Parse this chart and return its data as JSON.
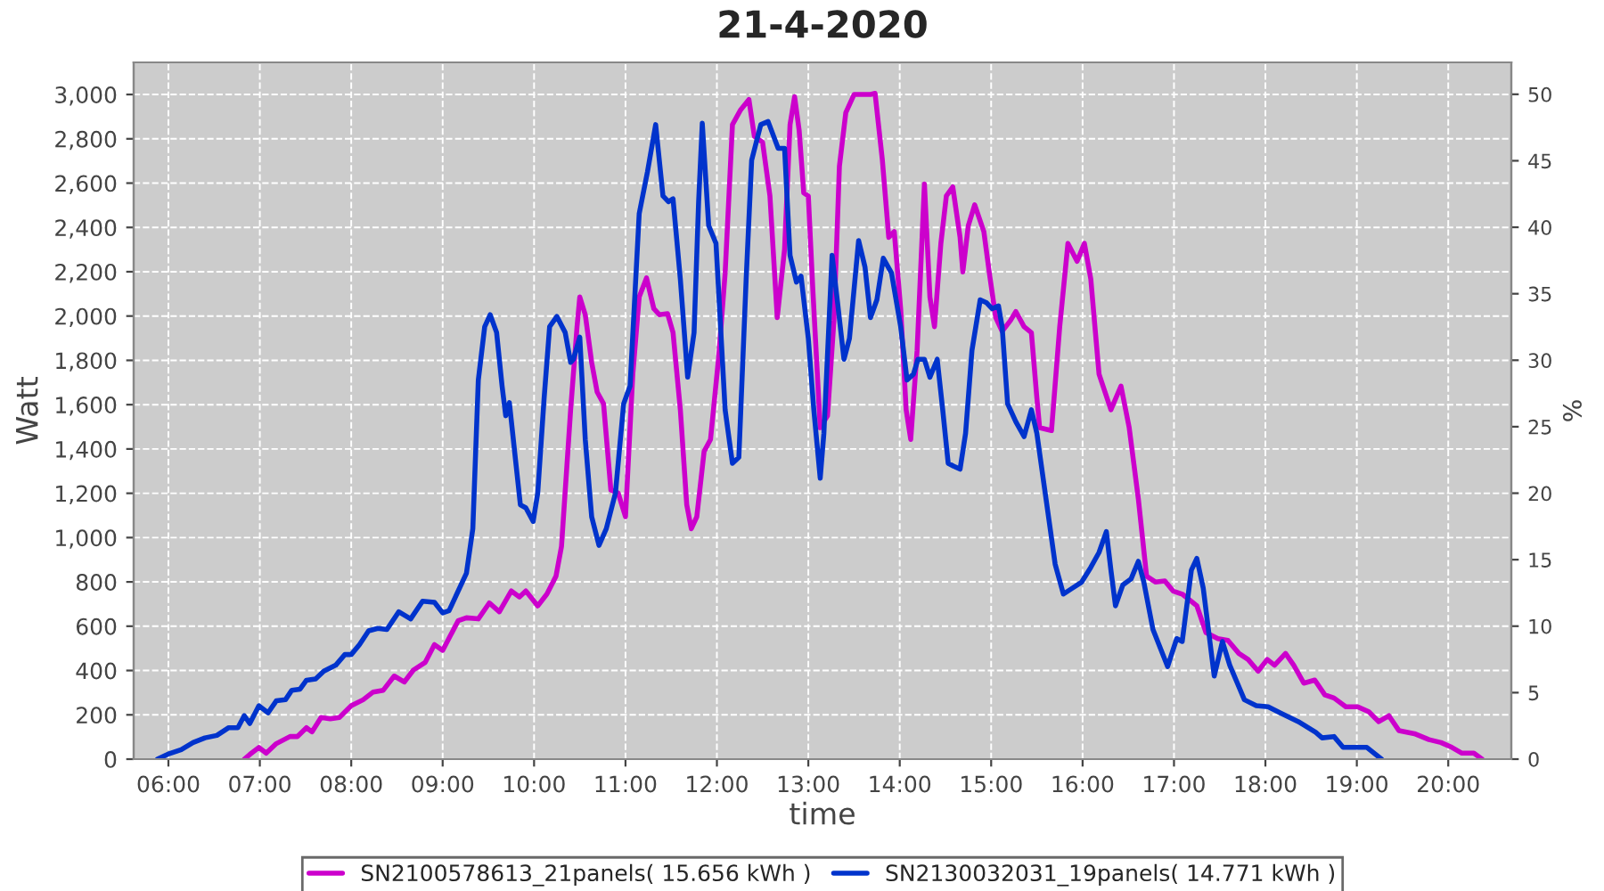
{
  "chart_data": {
    "type": "line",
    "title": "21-4-2020",
    "xlabel": "time",
    "ylabel": "Watt",
    "y2label": "%",
    "xlim": [
      5.62,
      20.69
    ],
    "ylim": [
      0,
      3145
    ],
    "y2lim": [
      0,
      52.4
    ],
    "xticks": [
      {
        "value": 6,
        "label": "06:00"
      },
      {
        "value": 7,
        "label": "07:00"
      },
      {
        "value": 8,
        "label": "08:00"
      },
      {
        "value": 9,
        "label": "09:00"
      },
      {
        "value": 10,
        "label": "10:00"
      },
      {
        "value": 11,
        "label": "11:00"
      },
      {
        "value": 12,
        "label": "12:00"
      },
      {
        "value": 13,
        "label": "13:00"
      },
      {
        "value": 14,
        "label": "14:00"
      },
      {
        "value": 15,
        "label": "15:00"
      },
      {
        "value": 16,
        "label": "16:00"
      },
      {
        "value": 17,
        "label": "17:00"
      },
      {
        "value": 18,
        "label": "18:00"
      },
      {
        "value": 19,
        "label": "19:00"
      },
      {
        "value": 20,
        "label": "20:00"
      }
    ],
    "yticks": [
      0,
      200,
      400,
      600,
      800,
      {
        "value": 1000,
        "label": "1,000"
      },
      {
        "value": 1200,
        "label": "1,200"
      },
      {
        "value": 1400,
        "label": "1,400"
      },
      {
        "value": 1600,
        "label": "1,600"
      },
      {
        "value": 1800,
        "label": "1,800"
      },
      {
        "value": 2000,
        "label": "2,000"
      },
      {
        "value": 2200,
        "label": "2,200"
      },
      {
        "value": 2400,
        "label": "2,400"
      },
      {
        "value": 2600,
        "label": "2,600"
      },
      {
        "value": 2800,
        "label": "2,800"
      },
      {
        "value": 3000,
        "label": "3,000"
      }
    ],
    "y2ticks": [
      0,
      5,
      10,
      15,
      20,
      25,
      30,
      35,
      40,
      45,
      50
    ],
    "grid": true,
    "legend": "bottom",
    "line_style": "solid",
    "series": [
      {
        "name": "SN2100578613_21panels( 15.656 kWh )",
        "color": "#cc00cc",
        "x": [
          6.83,
          6.89,
          6.99,
          7.07,
          7.18,
          7.33,
          7.41,
          7.51,
          7.57,
          7.67,
          7.77,
          7.87,
          8.0,
          8.13,
          8.24,
          8.35,
          8.47,
          8.58,
          8.68,
          8.81,
          8.91,
          9.0,
          9.17,
          9.26,
          9.39,
          9.51,
          9.62,
          9.75,
          9.84,
          9.91,
          10.04,
          10.14,
          10.24,
          10.3,
          10.4,
          10.47,
          10.5,
          10.56,
          10.63,
          10.69,
          10.76,
          10.84,
          10.92,
          11.0,
          11.08,
          11.15,
          11.23,
          11.31,
          11.37,
          11.46,
          11.52,
          11.6,
          11.67,
          11.72,
          11.78,
          11.86,
          11.93,
          12.02,
          12.09,
          12.17,
          12.26,
          12.35,
          12.41,
          12.5,
          12.58,
          12.66,
          12.74,
          12.8,
          12.85,
          12.9,
          12.95,
          13.0,
          13.05,
          13.13,
          13.21,
          13.28,
          13.34,
          13.41,
          13.5,
          13.6,
          13.68,
          13.73,
          13.81,
          13.88,
          13.94,
          14.01,
          14.07,
          14.12,
          14.19,
          14.27,
          14.33,
          14.38,
          14.45,
          14.51,
          14.58,
          14.66,
          14.69,
          14.75,
          14.82,
          14.92,
          14.98,
          15.05,
          15.12,
          15.21,
          15.27,
          15.36,
          15.44,
          15.5,
          15.53,
          15.66,
          15.75,
          15.84,
          15.94,
          16.02,
          16.09,
          16.18,
          16.31,
          16.42,
          16.51,
          16.61,
          16.7,
          16.8,
          16.9,
          16.99,
          17.09,
          17.25,
          17.35,
          17.48,
          17.59,
          17.71,
          17.81,
          17.92,
          18.02,
          18.1,
          18.22,
          18.31,
          18.42,
          18.54,
          18.65,
          18.75,
          18.88,
          19.01,
          19.13,
          19.24,
          19.35,
          19.46,
          19.63,
          19.79,
          19.92,
          20.04,
          20.15,
          20.28,
          20.37
        ],
        "values": [
          0,
          21,
          53,
          27,
          70,
          102,
          102,
          142,
          123,
          188,
          182,
          188,
          241,
          268,
          303,
          311,
          375,
          348,
          402,
          437,
          517,
          491,
          625,
          638,
          633,
          705,
          665,
          759,
          732,
          759,
          692,
          745,
          826,
          960,
          1577,
          1952,
          2086,
          2006,
          1791,
          1657,
          1604,
          1215,
          1201,
          1094,
          1738,
          2086,
          2172,
          2033,
          2006,
          2011,
          1925,
          1577,
          1148,
          1040,
          1094,
          1389,
          1443,
          1818,
          2194,
          2864,
          2931,
          2977,
          2811,
          2784,
          2542,
          1993,
          2301,
          2864,
          2990,
          2837,
          2556,
          2542,
          2113,
          1496,
          1550,
          1979,
          2676,
          2918,
          3000,
          3000,
          3000,
          3005,
          2703,
          2355,
          2381,
          2033,
          1577,
          1443,
          1845,
          2596,
          2086,
          1952,
          2328,
          2542,
          2583,
          2355,
          2199,
          2408,
          2502,
          2381,
          2194,
          1993,
          1931,
          1979,
          2020,
          1952,
          1925,
          1631,
          1496,
          1483,
          1952,
          2328,
          2247,
          2328,
          2167,
          1738,
          1577,
          1684,
          1496,
          1175,
          826,
          799,
          804,
          759,
          745,
          692,
          571,
          544,
          536,
          477,
          450,
          397,
          450,
          424,
          477,
          424,
          343,
          357,
          290,
          276,
          236,
          236,
          214,
          169,
          196,
          129,
          115,
          88,
          75,
          53,
          27,
          27,
          0
        ]
      },
      {
        "name": "SN2130032031_19panels( 14.771 kWh )",
        "color": "#0033cc",
        "x": [
          5.88,
          6.01,
          6.14,
          6.27,
          6.4,
          6.53,
          6.66,
          6.76,
          6.83,
          6.89,
          6.99,
          7.09,
          7.18,
          7.28,
          7.35,
          7.44,
          7.51,
          7.61,
          7.7,
          7.83,
          7.93,
          8.0,
          8.09,
          8.19,
          8.29,
          8.39,
          8.52,
          8.65,
          8.78,
          8.91,
          9.0,
          9.07,
          9.17,
          9.26,
          9.33,
          9.39,
          9.46,
          9.52,
          9.59,
          9.65,
          9.69,
          9.73,
          9.78,
          9.85,
          9.91,
          9.99,
          10.04,
          10.11,
          10.17,
          10.25,
          10.34,
          10.4,
          10.43,
          10.5,
          10.56,
          10.63,
          10.71,
          10.79,
          10.89,
          10.98,
          11.05,
          11.15,
          11.24,
          11.33,
          11.41,
          11.47,
          11.52,
          11.6,
          11.68,
          11.75,
          11.8,
          11.84,
          11.91,
          11.99,
          12.09,
          12.17,
          12.24,
          12.32,
          12.38,
          12.48,
          12.56,
          12.67,
          12.74,
          12.8,
          12.87,
          12.92,
          13.0,
          13.06,
          13.13,
          13.17,
          13.26,
          13.32,
          13.39,
          13.45,
          13.55,
          13.62,
          13.68,
          13.75,
          13.82,
          13.91,
          14.01,
          14.08,
          14.15,
          14.2,
          14.27,
          14.33,
          14.41,
          14.47,
          14.53,
          14.59,
          14.66,
          14.72,
          14.79,
          14.88,
          14.95,
          15.01,
          15.08,
          15.12,
          15.18,
          15.27,
          15.36,
          15.44,
          15.5,
          15.6,
          15.7,
          15.79,
          15.89,
          15.99,
          16.09,
          16.18,
          16.26,
          16.31,
          16.36,
          16.44,
          16.53,
          16.61,
          16.67,
          16.77,
          16.93,
          17.03,
          17.09,
          17.19,
          17.25,
          17.32,
          17.44,
          17.53,
          17.61,
          17.77,
          17.9,
          18.03,
          18.16,
          18.36,
          18.55,
          18.62,
          18.75,
          18.85,
          19.11,
          19.27
        ],
        "values": [
          0,
          25,
          43,
          75,
          96,
          107,
          142,
          142,
          196,
          161,
          241,
          209,
          263,
          268,
          311,
          316,
          356,
          362,
          397,
          424,
          472,
          472,
          517,
          579,
          590,
          585,
          665,
          633,
          713,
          708,
          660,
          670,
          759,
          839,
          1040,
          1711,
          1952,
          2006,
          1926,
          1684,
          1550,
          1609,
          1416,
          1148,
          1134,
          1073,
          1201,
          1630,
          1952,
          1998,
          1926,
          1791,
          1805,
          1905,
          1443,
          1094,
          965,
          1040,
          1201,
          1604,
          1684,
          2462,
          2650,
          2864,
          2542,
          2516,
          2529,
          2167,
          1724,
          1925,
          2516,
          2870,
          2408,
          2328,
          1577,
          1335,
          1362,
          2167,
          2703,
          2864,
          2878,
          2757,
          2757,
          2274,
          2153,
          2180,
          1899,
          1577,
          1268,
          1470,
          2274,
          2060,
          1805,
          1899,
          2341,
          2221,
          1993,
          2073,
          2261,
          2194,
          1952,
          1711,
          1738,
          1805,
          1805,
          1724,
          1805,
          1577,
          1335,
          1322,
          1309,
          1470,
          1845,
          2073,
          2060,
          2033,
          2046,
          1952,
          1604,
          1523,
          1456,
          1577,
          1470,
          1175,
          880,
          745,
          772,
          799,
          866,
          933,
          1027,
          853,
          692,
          786,
          813,
          893,
          799,
          585,
          418,
          544,
          531,
          853,
          906,
          772,
          375,
          531,
          424,
          268,
          241,
          236,
          209,
          169,
          121,
          96,
          102,
          53,
          53,
          0
        ]
      }
    ]
  }
}
